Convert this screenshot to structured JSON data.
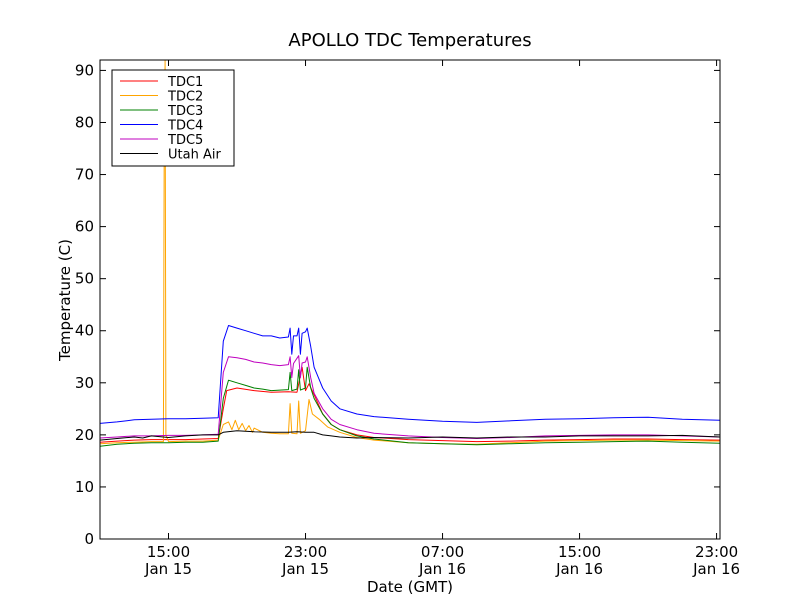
{
  "chart_data": {
    "type": "line",
    "title": "APOLLO TDC Temperatures",
    "xlabel": "Date (GMT)",
    "ylabel": "Temperature (C)",
    "ylim": [
      0,
      92
    ],
    "xlim_hours": [
      11,
      47.2
    ],
    "x_unit": "hours since Jan 15 00:00 GMT",
    "yticks": [
      0,
      10,
      20,
      30,
      40,
      50,
      60,
      70,
      80,
      90
    ],
    "xticks": [
      {
        "at": 15,
        "time": "15:00",
        "date": "Jan 15"
      },
      {
        "at": 23,
        "time": "23:00",
        "date": "Jan 15"
      },
      {
        "at": 31,
        "time": "07:00",
        "date": "Jan 16"
      },
      {
        "at": 39,
        "time": "15:00",
        "date": "Jan 16"
      },
      {
        "at": 47,
        "time": "23:00",
        "date": "Jan 16"
      }
    ],
    "legend_position": "top-left",
    "grid": false,
    "series": [
      {
        "name": "TDC1",
        "color": "#ff0000",
        "points": [
          [
            11,
            18.6
          ],
          [
            12,
            18.8
          ],
          [
            13,
            19
          ],
          [
            14,
            19.1
          ],
          [
            15,
            19.1
          ],
          [
            16,
            19.1
          ],
          [
            17,
            19.2
          ],
          [
            17.9,
            19.3
          ],
          [
            18.2,
            25
          ],
          [
            18.4,
            28.5
          ],
          [
            19,
            29
          ],
          [
            20,
            28.5
          ],
          [
            21,
            28.2
          ],
          [
            22,
            28.3
          ],
          [
            22.5,
            28.2
          ],
          [
            22.8,
            33
          ],
          [
            23,
            28.5
          ],
          [
            23.2,
            29.8
          ],
          [
            23.6,
            27
          ],
          [
            24,
            24
          ],
          [
            24.5,
            22
          ],
          [
            25,
            21
          ],
          [
            26,
            20
          ],
          [
            27,
            19.5
          ],
          [
            29,
            19.1
          ],
          [
            31,
            18.9
          ],
          [
            33,
            18.7
          ],
          [
            35,
            18.8
          ],
          [
            37,
            19
          ],
          [
            39,
            19.1
          ],
          [
            41,
            19.2
          ],
          [
            43,
            19.2
          ],
          [
            45,
            19.1
          ],
          [
            47.2,
            19
          ]
        ]
      },
      {
        "name": "TDC2",
        "color": "#ffa500",
        "points": [
          [
            11,
            18.3
          ],
          [
            12,
            18.5
          ],
          [
            13,
            18.6
          ],
          [
            14,
            18.7
          ],
          [
            14.7,
            18.7
          ],
          [
            14.75,
            75
          ],
          [
            14.8,
            92
          ],
          [
            14.85,
            20
          ],
          [
            15,
            18.7
          ],
          [
            16,
            18.8
          ],
          [
            17,
            18.8
          ],
          [
            17.9,
            19
          ],
          [
            18.2,
            22
          ],
          [
            18.5,
            22.5
          ],
          [
            18.7,
            21
          ],
          [
            18.9,
            22.8
          ],
          [
            19.1,
            21
          ],
          [
            19.3,
            22.2
          ],
          [
            19.5,
            20.8
          ],
          [
            19.7,
            21.8
          ],
          [
            19.9,
            20.5
          ],
          [
            20,
            21.3
          ],
          [
            20.5,
            20.5
          ],
          [
            21,
            20.3
          ],
          [
            21.5,
            20.2
          ],
          [
            22,
            20.2
          ],
          [
            22.1,
            26
          ],
          [
            22.2,
            20.3
          ],
          [
            22.5,
            20.2
          ],
          [
            22.6,
            26.5
          ],
          [
            22.7,
            20.3
          ],
          [
            23,
            20.8
          ],
          [
            23.2,
            26.8
          ],
          [
            23.4,
            24
          ],
          [
            23.8,
            23
          ],
          [
            24.3,
            21.5
          ],
          [
            25,
            20.5
          ],
          [
            26,
            19.5
          ],
          [
            27,
            19
          ],
          [
            29,
            18.5
          ],
          [
            31,
            18.3
          ],
          [
            33,
            18.2
          ],
          [
            35,
            18.5
          ],
          [
            37,
            18.8
          ],
          [
            39,
            18.9
          ],
          [
            41,
            19
          ],
          [
            43,
            19
          ],
          [
            45,
            18.9
          ],
          [
            47.2,
            18.8
          ]
        ]
      },
      {
        "name": "TDC3",
        "color": "#008000",
        "points": [
          [
            11,
            17.8
          ],
          [
            12,
            18.2
          ],
          [
            13,
            18.4
          ],
          [
            14,
            18.5
          ],
          [
            15,
            18.5
          ],
          [
            16,
            18.6
          ],
          [
            17,
            18.6
          ],
          [
            17.9,
            18.8
          ],
          [
            18.2,
            27
          ],
          [
            18.5,
            30.5
          ],
          [
            19,
            30
          ],
          [
            19.5,
            29.5
          ],
          [
            20,
            29
          ],
          [
            20.5,
            28.8
          ],
          [
            21,
            28.5
          ],
          [
            21.5,
            28.6
          ],
          [
            22,
            28.7
          ],
          [
            22.1,
            32
          ],
          [
            22.2,
            28.5
          ],
          [
            22.5,
            28.8
          ],
          [
            22.6,
            32.5
          ],
          [
            22.7,
            28.6
          ],
          [
            23,
            29
          ],
          [
            23.1,
            33
          ],
          [
            23.3,
            29
          ],
          [
            23.5,
            27
          ],
          [
            24,
            24
          ],
          [
            24.5,
            22
          ],
          [
            25,
            21
          ],
          [
            26,
            19.8
          ],
          [
            27,
            19.2
          ],
          [
            29,
            18.5
          ],
          [
            31,
            18.3
          ],
          [
            33,
            18.1
          ],
          [
            35,
            18.3
          ],
          [
            37,
            18.5
          ],
          [
            39,
            18.6
          ],
          [
            41,
            18.7
          ],
          [
            43,
            18.8
          ],
          [
            45,
            18.6
          ],
          [
            47.2,
            18.4
          ]
        ]
      },
      {
        "name": "TDC4",
        "color": "#0000ff",
        "points": [
          [
            11,
            22.2
          ],
          [
            12,
            22.5
          ],
          [
            13,
            22.9
          ],
          [
            14,
            23
          ],
          [
            15,
            23.1
          ],
          [
            16,
            23.1
          ],
          [
            17,
            23.2
          ],
          [
            17.9,
            23.3
          ],
          [
            18.2,
            38
          ],
          [
            18.5,
            41
          ],
          [
            19,
            40.5
          ],
          [
            19.5,
            40
          ],
          [
            20,
            39.5
          ],
          [
            20.5,
            39
          ],
          [
            21,
            39
          ],
          [
            21.5,
            38.6
          ],
          [
            22,
            38.8
          ],
          [
            22.1,
            40.5
          ],
          [
            22.2,
            35.5
          ],
          [
            22.3,
            39
          ],
          [
            22.5,
            39
          ],
          [
            22.6,
            40.5
          ],
          [
            22.7,
            35.5
          ],
          [
            22.8,
            39.5
          ],
          [
            23,
            39.8
          ],
          [
            23.1,
            40.5
          ],
          [
            23.3,
            37
          ],
          [
            23.5,
            33
          ],
          [
            24,
            29
          ],
          [
            24.5,
            26.5
          ],
          [
            25,
            25
          ],
          [
            26,
            24
          ],
          [
            27,
            23.5
          ],
          [
            29,
            23
          ],
          [
            31,
            22.6
          ],
          [
            33,
            22.4
          ],
          [
            35,
            22.7
          ],
          [
            37,
            23
          ],
          [
            39,
            23.1
          ],
          [
            41,
            23.3
          ],
          [
            43,
            23.4
          ],
          [
            45,
            23
          ],
          [
            47.2,
            22.8
          ]
        ]
      },
      {
        "name": "TDC5",
        "color": "#bf00bf",
        "points": [
          [
            11,
            19.4
          ],
          [
            12,
            19.6
          ],
          [
            13,
            19.8
          ],
          [
            14,
            19.8
          ],
          [
            15,
            19.9
          ],
          [
            16,
            19.9
          ],
          [
            17,
            20
          ],
          [
            17.9,
            20.1
          ],
          [
            18.2,
            32
          ],
          [
            18.5,
            35
          ],
          [
            19,
            34.8
          ],
          [
            19.5,
            34.5
          ],
          [
            20,
            34
          ],
          [
            20.5,
            33.8
          ],
          [
            21,
            33.5
          ],
          [
            21.5,
            33.3
          ],
          [
            22,
            33.5
          ],
          [
            22.1,
            35
          ],
          [
            22.2,
            31
          ],
          [
            22.3,
            33.7
          ],
          [
            22.6,
            35.2
          ],
          [
            22.7,
            31
          ],
          [
            22.8,
            33.8
          ],
          [
            23,
            34
          ],
          [
            23.1,
            35
          ],
          [
            23.3,
            31
          ],
          [
            23.5,
            28
          ],
          [
            24,
            25
          ],
          [
            24.5,
            23
          ],
          [
            25,
            22
          ],
          [
            26,
            21
          ],
          [
            27,
            20.3
          ],
          [
            29,
            19.8
          ],
          [
            31,
            19.5
          ],
          [
            33,
            19.3
          ],
          [
            35,
            19.5
          ],
          [
            37,
            19.8
          ],
          [
            39,
            19.9
          ],
          [
            41,
            20
          ],
          [
            43,
            20
          ],
          [
            45,
            19.8
          ],
          [
            47.2,
            19.6
          ]
        ]
      },
      {
        "name": "Utah Air",
        "color": "#000000",
        "points": [
          [
            11,
            19
          ],
          [
            12,
            19.3
          ],
          [
            13,
            19.6
          ],
          [
            13.5,
            19.4
          ],
          [
            14,
            19.8
          ],
          [
            15,
            19.5
          ],
          [
            16,
            19.8
          ],
          [
            17,
            20
          ],
          [
            17.9,
            20
          ],
          [
            18.2,
            20.5
          ],
          [
            19,
            20.8
          ],
          [
            20,
            20.6
          ],
          [
            21,
            20.5
          ],
          [
            22,
            20.5
          ],
          [
            22.5,
            20.6
          ],
          [
            23,
            20.5
          ],
          [
            23.5,
            20.5
          ],
          [
            24,
            20
          ],
          [
            24.5,
            19.8
          ],
          [
            25,
            19.6
          ],
          [
            26,
            19.4
          ],
          [
            27,
            19.5
          ],
          [
            29,
            19.4
          ],
          [
            31,
            19.6
          ],
          [
            33,
            19.4
          ],
          [
            35,
            19.6
          ],
          [
            37,
            19.6
          ],
          [
            39,
            19.8
          ],
          [
            41,
            19.8
          ],
          [
            43,
            19.8
          ],
          [
            45,
            19.9
          ],
          [
            47.2,
            19.6
          ]
        ]
      }
    ]
  }
}
